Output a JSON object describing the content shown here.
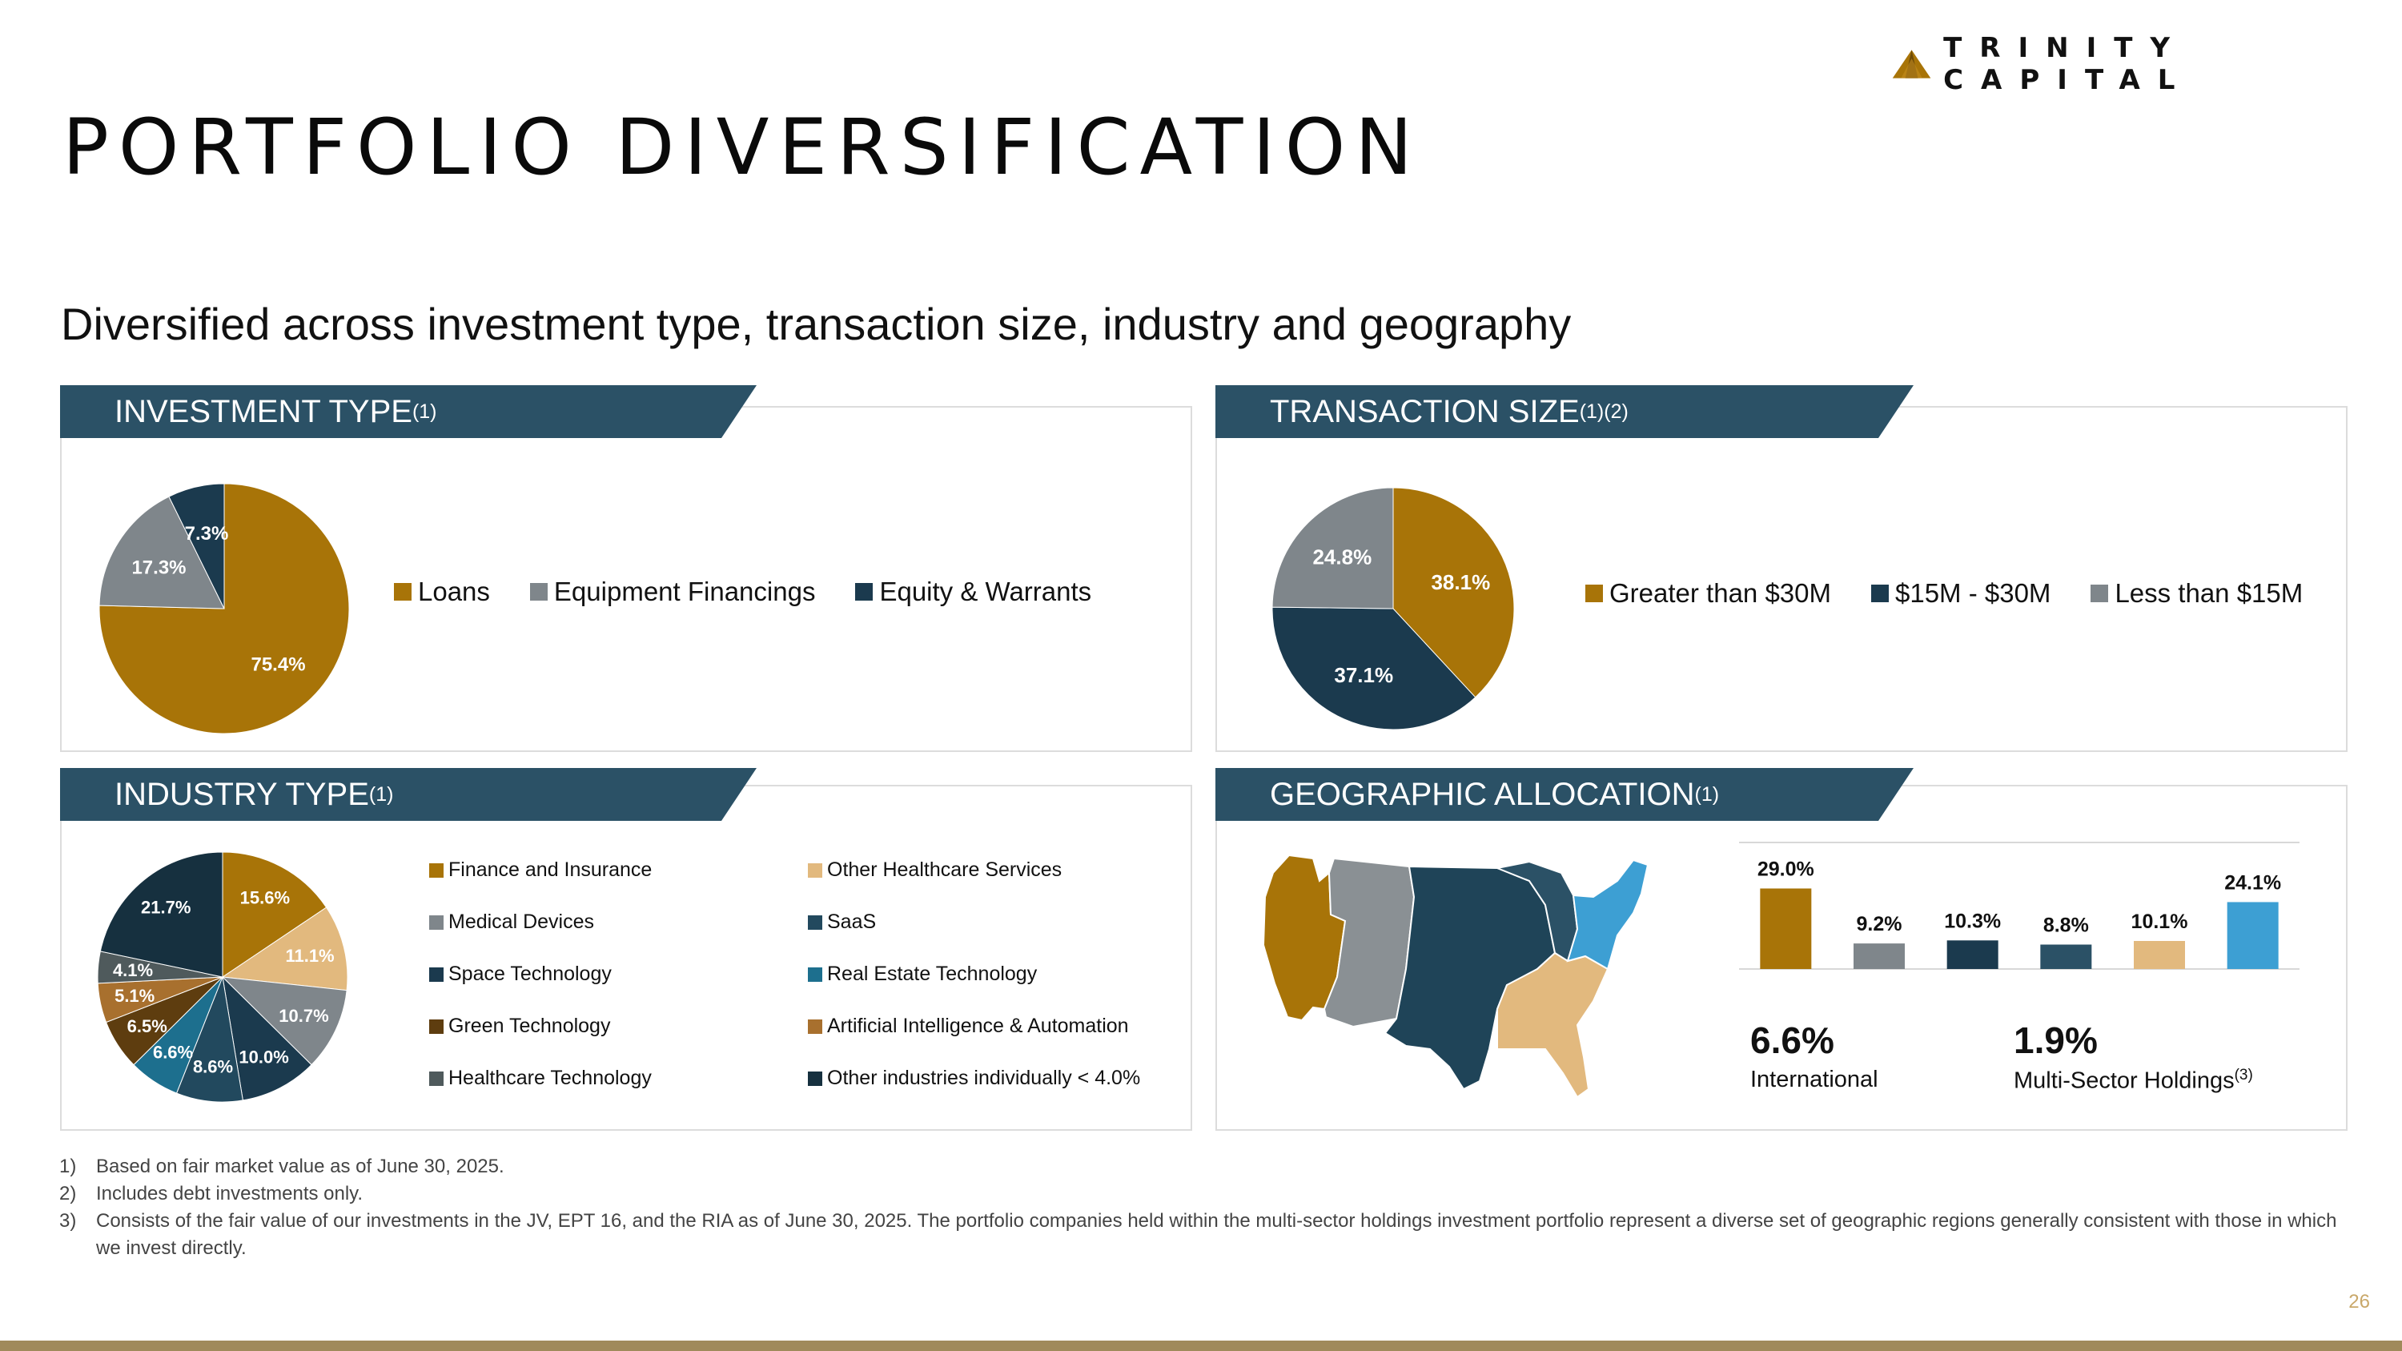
{
  "brand": {
    "logo_text": "TRINITY CAPITAL",
    "logo_icon": "triangle-mountain-icon",
    "colors": {
      "gold": "#a87408",
      "navy": "#1b3a4e",
      "gray": "#7f868b"
    }
  },
  "header": {
    "title": "PORTFOLIO DIVERSIFICATION",
    "subtitle": "Diversified across investment type, transaction size, industry and geography"
  },
  "panels": {
    "investment_type": {
      "title": "INVESTMENT TYPE",
      "note": "(1)"
    },
    "transaction_size": {
      "title": "TRANSACTION SIZE",
      "note": "(1)(2)"
    },
    "industry_type": {
      "title": "INDUSTRY TYPE",
      "note": "(1)"
    },
    "geographic": {
      "title": "GEOGRAPHIC ALLOCATION",
      "note": "(1)"
    }
  },
  "stats": {
    "international": {
      "value": "6.6%",
      "label": "International"
    },
    "multi_sector": {
      "value": "1.9%",
      "label": "Multi-Sector Holdings",
      "note": "(3)"
    }
  },
  "footnotes": [
    {
      "num": "1)",
      "text": "Based on fair market value as of June 30, 2025."
    },
    {
      "num": "2)",
      "text": "Includes debt investments only."
    },
    {
      "num": "3)",
      "text": "Consists of the fair value of our investments in the JV, EPT 16, and the RIA as of June 30, 2025. The portfolio companies held within the multi-sector holdings investment portfolio represent a diverse set of geographic regions generally consistent with those in which we invest directly."
    }
  ],
  "page_number": "26",
  "chart_data": [
    {
      "type": "pie",
      "title": "INVESTMENT TYPE",
      "categories": [
        "Loans",
        "Equipment Financings",
        "Equity & Warrants"
      ],
      "values": [
        75.4,
        17.3,
        7.3
      ],
      "labels": [
        "75.4%",
        "17.3%",
        "7.3%"
      ],
      "colors": [
        "#a87408",
        "#7f868b",
        "#1b3a4e"
      ],
      "legend": "right"
    },
    {
      "type": "pie",
      "title": "TRANSACTION SIZE",
      "categories": [
        "Greater than $30M",
        "$15M - $30M",
        "Less than $15M"
      ],
      "values": [
        38.1,
        37.1,
        24.8
      ],
      "labels": [
        "38.1%",
        "37.1%",
        "24.8%"
      ],
      "colors": [
        "#a87408",
        "#1b3a4e",
        "#7f868b"
      ],
      "legend": "right"
    },
    {
      "type": "pie",
      "title": "INDUSTRY TYPE",
      "categories": [
        "Finance and Insurance",
        "Other Healthcare Services",
        "Medical Devices",
        "Space Technology",
        "SaaS",
        "Real Estate Technology",
        "Green Technology",
        "Artificial Intelligence & Automation",
        "Healthcare Technology",
        "Other industries individually < 4.0%"
      ],
      "values": [
        15.6,
        11.1,
        10.7,
        10.0,
        8.6,
        6.6,
        6.5,
        5.1,
        4.1,
        21.7
      ],
      "labels": [
        "15.6%",
        "11.1%",
        "10.7%",
        "10.0%",
        "8.6%",
        "6.6%",
        "6.5%",
        "5.1%",
        "4.1%",
        "21.7%"
      ],
      "colors": [
        "#a87408",
        "#e2b97e",
        "#7f868b",
        "#1b3a4e",
        "#22495e",
        "#1d6f8e",
        "#5e3d0f",
        "#a8702e",
        "#4f5a5c",
        "#16303f"
      ],
      "legend": "right"
    },
    {
      "type": "bar",
      "title": "GEOGRAPHIC ALLOCATION",
      "values": [
        29.0,
        9.2,
        10.3,
        8.8,
        10.1,
        24.1
      ],
      "labels": [
        "29.0%",
        "9.2%",
        "10.3%",
        "8.8%",
        "10.1%",
        "24.1%"
      ],
      "colors": [
        "#a87408",
        "#7f868b",
        "#1b3a4e",
        "#2b5166",
        "#e2b97e",
        "#3d9fd3"
      ]
    }
  ]
}
